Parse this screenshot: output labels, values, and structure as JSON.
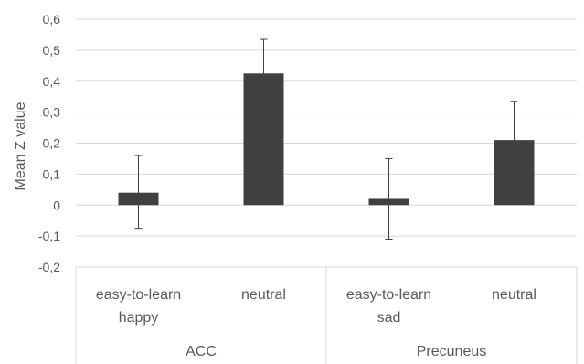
{
  "chart_data": {
    "type": "bar",
    "ylabel": "Mean Z value",
    "ylim": [
      -0.2,
      0.6
    ],
    "yticks": [
      "0,6",
      "0,5",
      "0,4",
      "0,3",
      "0,2",
      "0,1",
      "0",
      "-0,1",
      "-0,2"
    ],
    "ytick_values": [
      0.6,
      0.5,
      0.4,
      0.3,
      0.2,
      0.1,
      0,
      -0.1,
      -0.2
    ],
    "grid": true,
    "bar_color": "#404040",
    "groups": [
      {
        "name": "ACC",
        "categories": [
          {
            "line1": "easy-to-learn",
            "line2": "happy",
            "value": 0.04,
            "err_low": -0.075,
            "err_high": 0.16
          },
          {
            "line1": "neutral",
            "line2": "",
            "value": 0.425,
            "err_low": 0.32,
            "err_high": 0.535
          }
        ]
      },
      {
        "name": "Precuneus",
        "categories": [
          {
            "line1": "easy-to-learn",
            "line2": "sad",
            "value": 0.02,
            "err_low": -0.11,
            "err_high": 0.15
          },
          {
            "line1": "neutral",
            "line2": "",
            "value": 0.21,
            "err_low": 0.095,
            "err_high": 0.335
          }
        ]
      }
    ]
  }
}
